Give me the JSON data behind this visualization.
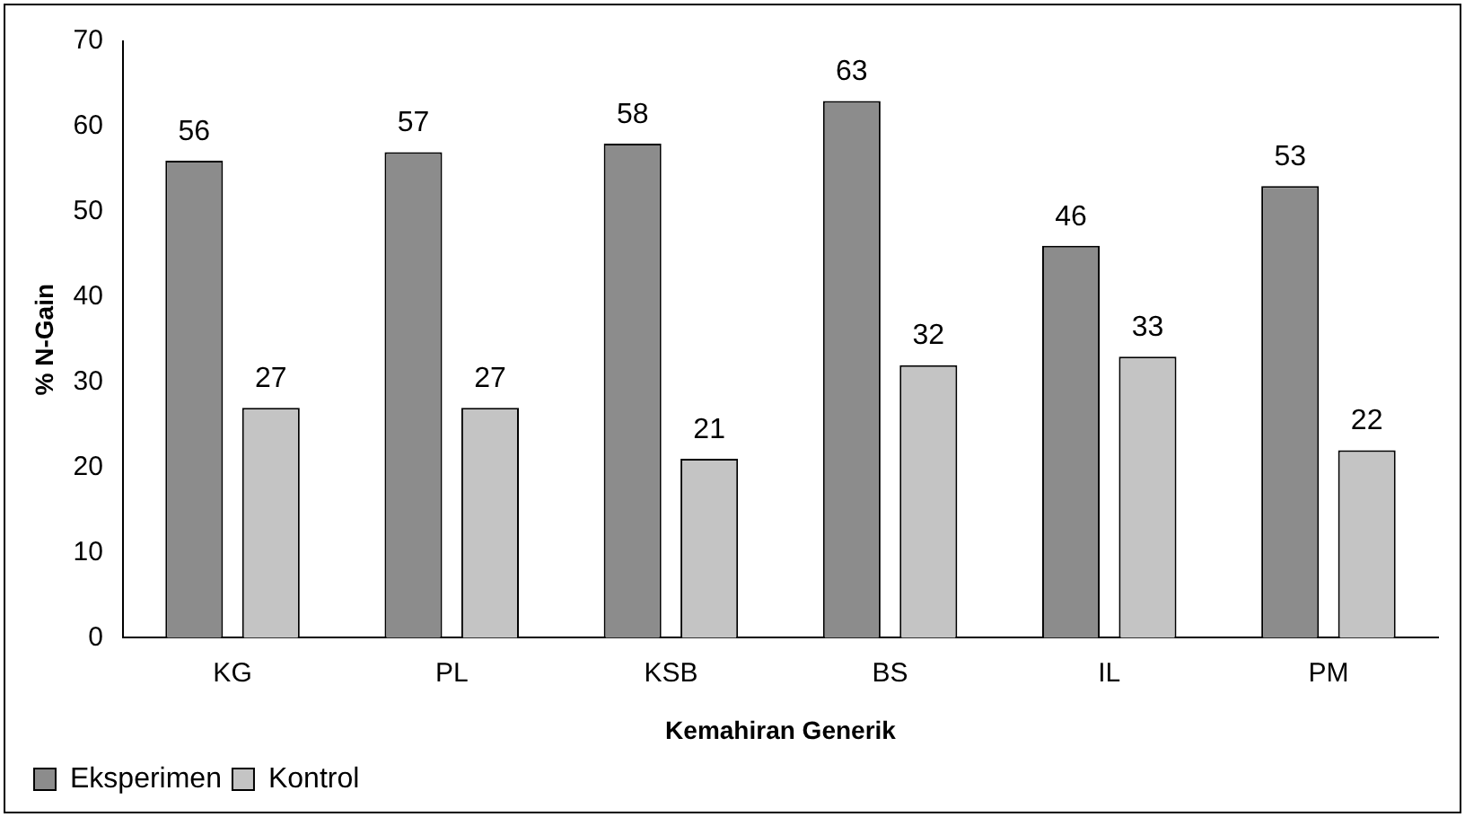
{
  "chart_data": {
    "type": "bar",
    "xlabel": "Kemahiran Generik",
    "ylabel": "% N-Gain",
    "categories": [
      "KG",
      "PL",
      "KSB",
      "BS",
      "IL",
      "PM"
    ],
    "series": [
      {
        "name": "Eksperimen",
        "color": "#8c8c8c",
        "values": [
          56,
          57,
          58,
          63,
          46,
          53
        ]
      },
      {
        "name": "Kontrol",
        "color": "#c4c4c4",
        "values": [
          27,
          27,
          21,
          32,
          33,
          22
        ]
      }
    ],
    "ylim": [
      0,
      70
    ],
    "yticks": [
      0,
      10,
      20,
      30,
      40,
      50,
      60,
      70
    ],
    "grid": false,
    "legend": "bottom left",
    "data_labels": true
  }
}
